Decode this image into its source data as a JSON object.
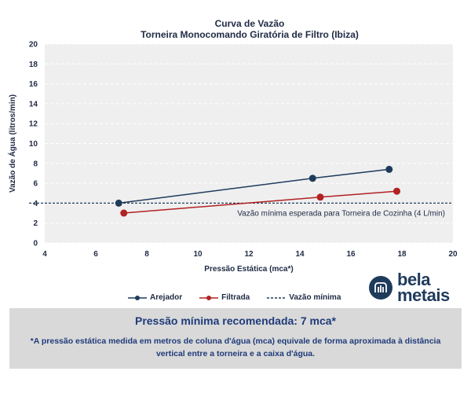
{
  "chart_data": {
    "type": "line",
    "title": "Curva de Vazão",
    "subtitle": "Torneira Monocomando Giratória de Filtro (Ibiza)",
    "xlabel": "Pressão Estática (mca*)",
    "ylabel": "Vazão de Água (litros/min)",
    "xlim": [
      4,
      20
    ],
    "ylim": [
      0,
      20
    ],
    "xticks": [
      4,
      6,
      8,
      10,
      12,
      14,
      16,
      18,
      20
    ],
    "yticks": [
      0,
      2,
      4,
      6,
      8,
      10,
      12,
      14,
      16,
      18,
      20
    ],
    "grid": "horizontal",
    "series": [
      {
        "name": "Arejador",
        "color": "#1f3b5c",
        "x": [
          6.9,
          14.5,
          17.5
        ],
        "y": [
          4.0,
          6.5,
          7.4
        ]
      },
      {
        "name": "Filtrada",
        "color": "#b22222",
        "x": [
          7.1,
          14.8,
          17.8
        ],
        "y": [
          3.0,
          4.6,
          5.2
        ]
      }
    ],
    "reference_line": {
      "name": "Vazão mínima",
      "y": 4,
      "style": "dashed",
      "color": "#1f3b5c"
    },
    "annotation": "Vazão mínima esperada para Torneira de Cozinha (4 L/min)",
    "legend_position": "bottom"
  },
  "logo": {
    "line1": "bela",
    "line2": "metais"
  },
  "footer": {
    "title": "Pressão mínima recomendada: 7 mca*",
    "note": "*A pressão estática medida em metros de coluna d'água (mca) equivale de forma aproximada à distância vertical entre a torneira e a caixa d'água."
  }
}
